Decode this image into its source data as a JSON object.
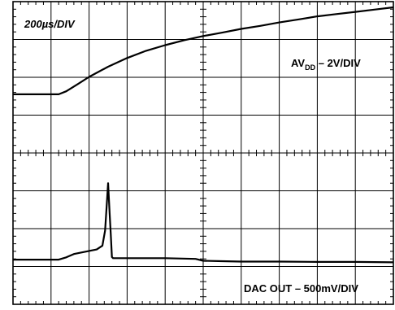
{
  "chart_data": {
    "type": "line",
    "title": "",
    "timebase_label": "200µs/DIV",
    "grid": true,
    "divisions": {
      "x": 10,
      "y": 8,
      "minor_per_div": 5
    },
    "xlim": [
      0,
      10
    ],
    "ylim": [
      0,
      8
    ],
    "colors": {
      "trace": "#000000",
      "grid": "#000000",
      "background": "#ffffff"
    },
    "series": [
      {
        "name": "AVDD – 2V/DIV",
        "label_main": "AV",
        "label_sub": "DD",
        "label_rest": " – 2V/DIV",
        "x": [
          0,
          1.2,
          1.4,
          1.7,
          2.0,
          2.5,
          3.0,
          3.5,
          4.0,
          4.5,
          5.0,
          5.5,
          6.0,
          6.5,
          7.0,
          7.5,
          8.0,
          8.5,
          9.0,
          9.5,
          10.0
        ],
        "y": [
          5.55,
          5.55,
          5.63,
          5.82,
          6.01,
          6.28,
          6.51,
          6.7,
          6.85,
          6.98,
          7.09,
          7.18,
          7.28,
          7.36,
          7.45,
          7.53,
          7.61,
          7.67,
          7.73,
          7.79,
          7.85
        ]
      },
      {
        "name": "DAC OUT – 500mV/DIV",
        "label_main": "DAC OUT – 500mV/DIV",
        "x": [
          0,
          1.2,
          1.4,
          1.6,
          1.8,
          2.0,
          2.2,
          2.35,
          2.42,
          2.46,
          2.5,
          2.54,
          2.57,
          2.6,
          2.63,
          2.7,
          3.0,
          4.0,
          4.8,
          5.0,
          5.5,
          6.0,
          7.0,
          8.0,
          9.0,
          10.0
        ],
        "y": [
          1.18,
          1.18,
          1.24,
          1.33,
          1.37,
          1.41,
          1.45,
          1.55,
          1.95,
          2.55,
          3.2,
          2.4,
          1.85,
          1.25,
          1.22,
          1.22,
          1.22,
          1.22,
          1.2,
          1.15,
          1.14,
          1.13,
          1.13,
          1.12,
          1.12,
          1.11
        ]
      }
    ]
  }
}
